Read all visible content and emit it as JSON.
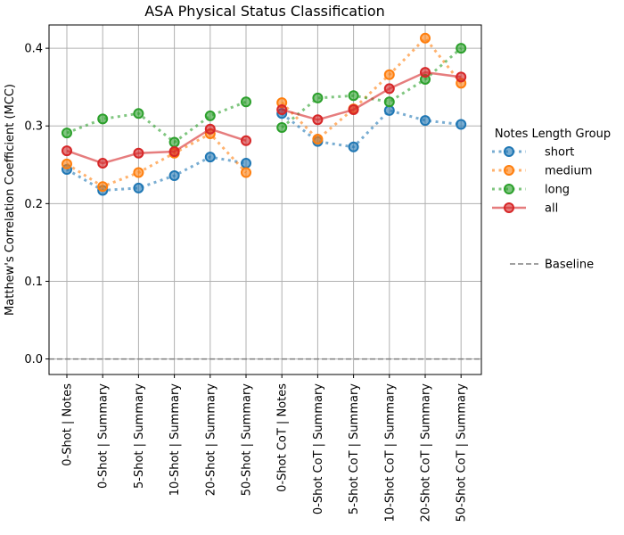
{
  "chart_data": {
    "type": "line",
    "title": "ASA Physical Status Classification",
    "xlabel": "",
    "ylabel": "Matthew's Correlation Coefficient (MCC)",
    "ylim": [
      -0.02,
      0.43
    ],
    "yticks": [
      "0.0",
      "0.1",
      "0.2",
      "0.3",
      "0.4"
    ],
    "grid": true,
    "legend_title": "Notes Length Group",
    "legend_position": "right",
    "groups": [
      {
        "categories": [
          "0-Shot | Notes",
          "0-Shot | Summary",
          "5-Shot | Summary",
          "10-Shot | Summary",
          "20-Shot | Summary",
          "50-Shot | Summary"
        ],
        "series": [
          {
            "name": "short",
            "values": [
              0.244,
              0.217,
              0.22,
              0.236,
              0.26,
              0.252
            ]
          },
          {
            "name": "medium",
            "values": [
              0.251,
              0.222,
              0.24,
              0.265,
              0.29,
              0.24
            ]
          },
          {
            "name": "long",
            "values": [
              0.291,
              0.309,
              0.316,
              0.279,
              0.313,
              0.331
            ]
          },
          {
            "name": "all",
            "values": [
              0.268,
              0.252,
              0.265,
              0.267,
              0.296,
              0.281
            ]
          }
        ]
      },
      {
        "categories": [
          "0-Shot CoT | Notes",
          "0-Shot CoT | Summary",
          "5-Shot CoT | Summary",
          "10-Shot CoT | Summary",
          "20-Shot CoT | Summary",
          "50-Shot CoT | Summary"
        ],
        "series": [
          {
            "name": "short",
            "values": [
              0.316,
              0.28,
              0.273,
              0.32,
              0.307,
              0.302
            ]
          },
          {
            "name": "medium",
            "values": [
              0.33,
              0.283,
              0.322,
              0.366,
              0.413,
              0.355
            ]
          },
          {
            "name": "long",
            "values": [
              0.298,
              0.336,
              0.339,
              0.331,
              0.36,
              0.4
            ]
          },
          {
            "name": "all",
            "values": [
              0.321,
              0.308,
              0.321,
              0.348,
              0.369,
              0.363
            ]
          }
        ]
      }
    ],
    "baseline": {
      "name": "Baseline",
      "value": 0.0
    },
    "series_styles": [
      {
        "name": "short",
        "color": "#1f77b4",
        "line": "dotted"
      },
      {
        "name": "medium",
        "color": "#ff7f0e",
        "line": "dotted"
      },
      {
        "name": "long",
        "color": "#2ca02c",
        "line": "dotted"
      },
      {
        "name": "all",
        "color": "#d62728",
        "line": "solid"
      }
    ],
    "baseline_color": "#808080"
  }
}
